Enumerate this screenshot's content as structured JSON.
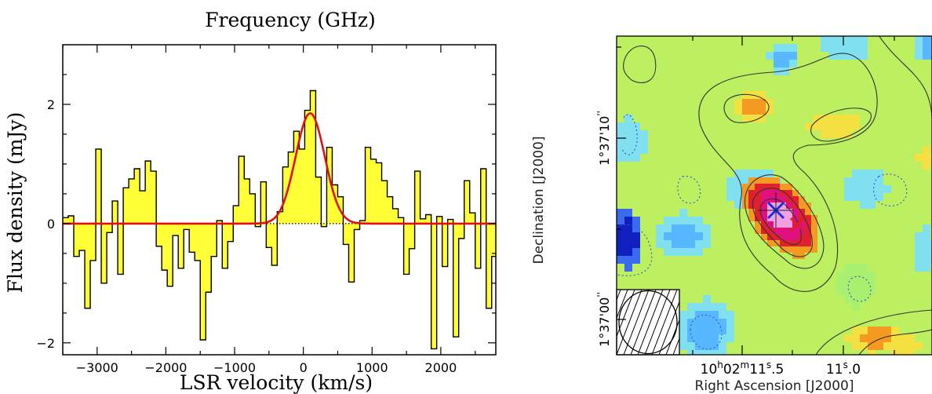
{
  "chart_data": [
    {
      "type": "bar",
      "title": "Frequency (GHz)",
      "xlabel": "LSR velocity (km/s)",
      "ylabel": "Flux density (mJy)",
      "xlim": [
        -3500,
        2800
      ],
      "ylim": [
        -2.2,
        3.0
      ],
      "xticks": [
        -3000,
        -2000,
        -1000,
        0,
        1000,
        2000
      ],
      "xtick_labels": [
        "−3000",
        "−2000",
        "−1000",
        "0",
        "1000",
        "2000"
      ],
      "yticks": [
        -2,
        0,
        2
      ],
      "ytick_labels": [
        "−2",
        "0",
        "2"
      ],
      "bin_start": -3500,
      "bin_width": 80,
      "values": [
        0.1,
        0.13,
        -0.55,
        -0.45,
        -1.42,
        -0.62,
        1.25,
        -1.0,
        -0.15,
        0.38,
        -0.85,
        0.6,
        0.75,
        0.92,
        0.55,
        1.05,
        0.88,
        -0.38,
        -0.78,
        -1.05,
        -0.2,
        -0.75,
        -0.1,
        -0.48,
        -0.62,
        -1.95,
        -1.15,
        -0.55,
        0.05,
        -0.75,
        -0.3,
        0.3,
        1.13,
        0.75,
        0.5,
        -0.05,
        0.7,
        -0.4,
        -0.7,
        0.2,
        0.95,
        1.2,
        1.55,
        1.25,
        1.9,
        2.23,
        0.78,
        -0.05,
        1.28,
        0.65,
        0.45,
        -0.35,
        -0.98,
        -0.1,
        0.05,
        1.28,
        1.08,
        1.02,
        0.72,
        0.45,
        0.25,
        0.1,
        -0.85,
        -0.42,
        0.88,
        0.08,
        0.15,
        -2.1,
        0.12,
        -0.72,
        0.07,
        -1.9,
        -0.25,
        0.72,
        0.18,
        -0.75,
        0.92,
        -1.42,
        -0.55,
        -0.75
      ],
      "series": [
        {
          "kind": "gaussian_fit",
          "color": "#e01010",
          "amplitude": 1.85,
          "center": 100,
          "fwhm": 500
        }
      ],
      "fill_color": "#ffff33",
      "grid": false
    },
    {
      "type": "heatmap",
      "xlabel": "Right Ascension [J2000]",
      "ylabel": "Declination [J2000]",
      "xtick_labels": [
        "10h02m11.5s",
        "11.0s"
      ],
      "ytick_labels": [
        "1°37'10\"",
        "1°37'00\""
      ],
      "x_ticks_ra": [
        {
          "label_parts": [
            "10",
            "h",
            "02",
            "m",
            "11",
            "s",
            ".5"
          ]
        },
        {
          "label_parts": [
            "11",
            "s",
            ".0"
          ]
        }
      ],
      "y_ticks_dec": [
        {
          "label_parts": [
            "1°37'10",
            "''"
          ]
        },
        {
          "label_parts": [
            "1°37'00",
            "''"
          ]
        }
      ],
      "colormap": [
        "#1020c0",
        "#3a6af0",
        "#58b8ff",
        "#80e0f0",
        "#a8f070",
        "#bcf060",
        "#f4e040",
        "#f59a20",
        "#e0202f",
        "#e01080",
        "#f0a0e0"
      ],
      "markers": [
        {
          "symbol": "x",
          "color": "#1a2ee0",
          "ra_offset": 0.0,
          "dec_offset": 0.0
        },
        {
          "symbol": "x",
          "color": "#e02020",
          "ra_offset": -0.12,
          "dec_offset": -0.8
        }
      ],
      "beam": "hatched-ellipse"
    }
  ]
}
